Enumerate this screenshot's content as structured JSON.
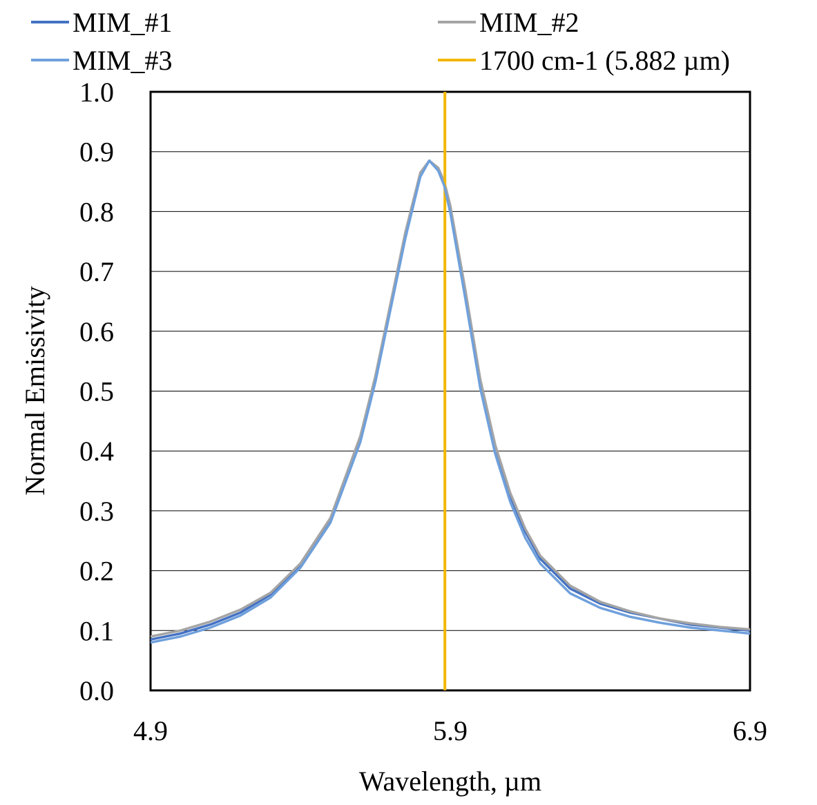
{
  "chart_data": {
    "type": "line",
    "xlabel": "Wavelength, µm",
    "ylabel": "Normal Emissivity",
    "xlim": [
      4.9,
      6.9
    ],
    "ylim": [
      0.0,
      1.0
    ],
    "xticks": [
      "4.9",
      "5.9",
      "6.9"
    ],
    "yticks": [
      "0.0",
      "0.1",
      "0.2",
      "0.3",
      "0.4",
      "0.5",
      "0.6",
      "0.7",
      "0.8",
      "0.9",
      "1.0"
    ],
    "grid": "horizontal",
    "legend_position": "top",
    "series": [
      {
        "name": "MIM_#1",
        "color": "#4472C4",
        "x": [
          4.9,
          5.0,
          5.1,
          5.2,
          5.3,
          5.4,
          5.5,
          5.6,
          5.65,
          5.7,
          5.75,
          5.8,
          5.83,
          5.86,
          5.88,
          5.9,
          5.95,
          6.0,
          6.05,
          6.1,
          6.15,
          6.2,
          6.3,
          6.4,
          6.5,
          6.6,
          6.7,
          6.8,
          6.9
        ],
        "y": [
          0.085,
          0.095,
          0.11,
          0.13,
          0.16,
          0.21,
          0.285,
          0.42,
          0.52,
          0.64,
          0.76,
          0.86,
          0.885,
          0.87,
          0.845,
          0.8,
          0.66,
          0.51,
          0.4,
          0.325,
          0.265,
          0.22,
          0.17,
          0.145,
          0.13,
          0.12,
          0.11,
          0.105,
          0.1
        ]
      },
      {
        "name": "MIM_#2",
        "color": "#A5A5A5",
        "x": [
          4.9,
          5.0,
          5.1,
          5.2,
          5.3,
          5.4,
          5.5,
          5.6,
          5.65,
          5.7,
          5.75,
          5.8,
          5.83,
          5.86,
          5.88,
          5.9,
          5.95,
          6.0,
          6.05,
          6.1,
          6.15,
          6.2,
          6.3,
          6.4,
          6.5,
          6.6,
          6.7,
          6.8,
          6.9
        ],
        "y": [
          0.09,
          0.1,
          0.115,
          0.135,
          0.163,
          0.212,
          0.288,
          0.425,
          0.525,
          0.645,
          0.765,
          0.865,
          0.885,
          0.873,
          0.85,
          0.81,
          0.67,
          0.52,
          0.41,
          0.33,
          0.27,
          0.225,
          0.175,
          0.148,
          0.132,
          0.12,
          0.112,
          0.106,
          0.102
        ]
      },
      {
        "name": "MIM_#3",
        "color": "#6FA0DC",
        "x": [
          4.9,
          5.0,
          5.1,
          5.2,
          5.3,
          5.4,
          5.5,
          5.6,
          5.65,
          5.7,
          5.75,
          5.8,
          5.83,
          5.86,
          5.88,
          5.9,
          5.95,
          6.0,
          6.05,
          6.1,
          6.15,
          6.2,
          6.3,
          6.4,
          6.5,
          6.6,
          6.7,
          6.8,
          6.9
        ],
        "y": [
          0.08,
          0.09,
          0.105,
          0.125,
          0.155,
          0.205,
          0.28,
          0.415,
          0.515,
          0.635,
          0.755,
          0.858,
          0.885,
          0.868,
          0.843,
          0.798,
          0.655,
          0.505,
          0.395,
          0.315,
          0.255,
          0.212,
          0.162,
          0.138,
          0.123,
          0.113,
          0.105,
          0.1,
          0.095
        ]
      },
      {
        "name": "1700 cm-1 (5.882 µm)",
        "color": "#F2B705",
        "x": [
          5.882,
          5.882
        ],
        "y": [
          0.0,
          1.0
        ]
      }
    ]
  }
}
